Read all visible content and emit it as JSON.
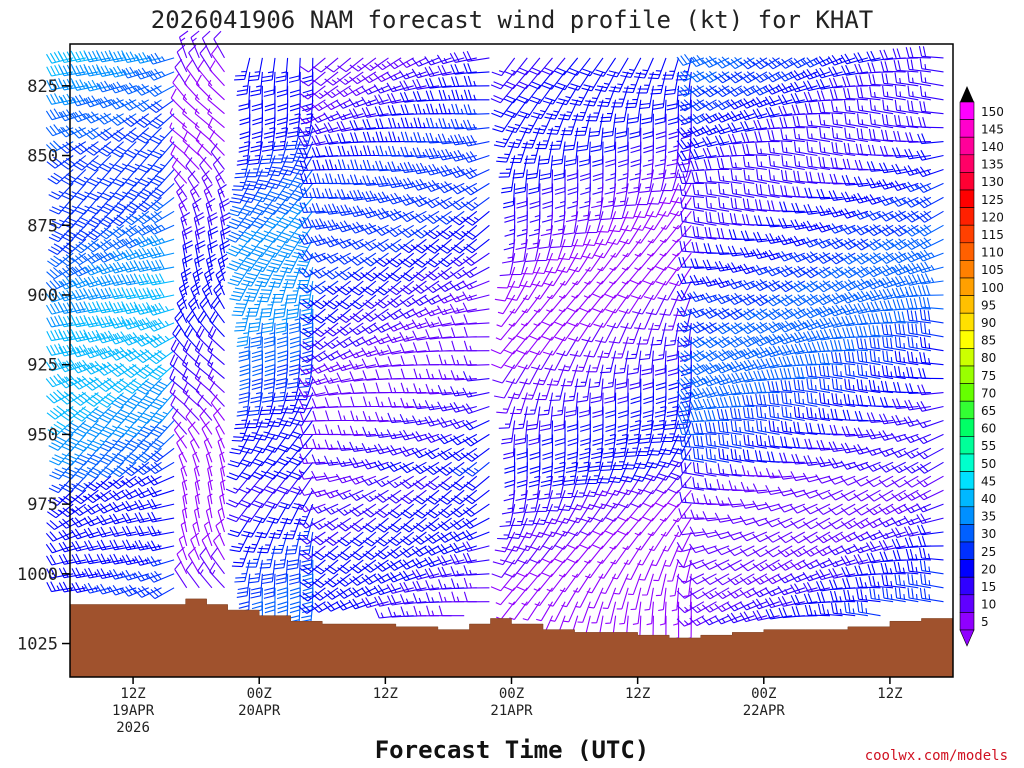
{
  "chart_data": {
    "type": "wind_profile",
    "title": "2026041906 NAM forecast wind profile (kt) for KHAT",
    "xlabel": "Forecast Time (UTC)",
    "credit": "coolwx.com/models",
    "ylim_hpa": [
      1037,
      810
    ],
    "y_ticks": [
      825,
      850,
      875,
      900,
      925,
      950,
      975,
      1000,
      1025
    ],
    "x_range_hours": [
      6,
      90
    ],
    "x_ticks": [
      {
        "hour": 12,
        "lines": [
          "12Z",
          "19APR",
          "2026"
        ]
      },
      {
        "hour": 24,
        "lines": [
          "00Z",
          "20APR"
        ]
      },
      {
        "hour": 36,
        "lines": [
          "12Z"
        ]
      },
      {
        "hour": 48,
        "lines": [
          "00Z",
          "21APR"
        ]
      },
      {
        "hour": 60,
        "lines": [
          "12Z"
        ]
      },
      {
        "hour": 72,
        "lines": [
          "00Z",
          "22APR"
        ]
      },
      {
        "hour": 84,
        "lines": [
          "12Z"
        ]
      }
    ],
    "colorbar": {
      "levels": [
        150,
        145,
        140,
        135,
        130,
        125,
        120,
        115,
        110,
        105,
        100,
        95,
        90,
        85,
        80,
        75,
        70,
        65,
        60,
        55,
        50,
        45,
        40,
        35,
        30,
        25,
        20,
        15,
        10,
        5
      ],
      "colors": [
        "#ff00ff",
        "#ff00cc",
        "#ff0099",
        "#ff0066",
        "#ff0033",
        "#ff0000",
        "#ff2000",
        "#ff4000",
        "#ff6000",
        "#ff8000",
        "#ffa000",
        "#ffc000",
        "#ffe000",
        "#ffff00",
        "#ccff00",
        "#99ff00",
        "#66ff00",
        "#33ff33",
        "#00ff66",
        "#00ff99",
        "#00ffcc",
        "#00e0ff",
        "#00b8ff",
        "#0090ff",
        "#0060ff",
        "#0030ff",
        "#0000ff",
        "#3000ff",
        "#6000ff",
        "#9000ff"
      ]
    },
    "surface_pressure_hpa": [
      {
        "hour": 6,
        "p": 1011
      },
      {
        "hour": 17,
        "p": 1009
      },
      {
        "hour": 19,
        "p": 1011
      },
      {
        "hour": 21,
        "p": 1013
      },
      {
        "hour": 24,
        "p": 1015
      },
      {
        "hour": 27,
        "p": 1017
      },
      {
        "hour": 30,
        "p": 1018
      },
      {
        "hour": 34,
        "p": 1018
      },
      {
        "hour": 37,
        "p": 1019
      },
      {
        "hour": 41,
        "p": 1020
      },
      {
        "hour": 44,
        "p": 1018
      },
      {
        "hour": 46,
        "p": 1016
      },
      {
        "hour": 48,
        "p": 1018
      },
      {
        "hour": 51,
        "p": 1020
      },
      {
        "hour": 54,
        "p": 1021
      },
      {
        "hour": 57,
        "p": 1021
      },
      {
        "hour": 60,
        "p": 1022
      },
      {
        "hour": 63,
        "p": 1023
      },
      {
        "hour": 66,
        "p": 1022
      },
      {
        "hour": 69,
        "p": 1021
      },
      {
        "hour": 72,
        "p": 1020
      },
      {
        "hour": 76,
        "p": 1020
      },
      {
        "hour": 80,
        "p": 1019
      },
      {
        "hour": 84,
        "p": 1017
      },
      {
        "hour": 87,
        "p": 1016
      },
      {
        "hour": 90,
        "p": 1014
      }
    ],
    "barb_grid": {
      "hours_step": 1.2,
      "pressure_levels": [
        815,
        820,
        825,
        830,
        835,
        840,
        845,
        850,
        855,
        860,
        865,
        870,
        875,
        880,
        885,
        890,
        895,
        900,
        905,
        910,
        915,
        920,
        925,
        930,
        935,
        940,
        945,
        950,
        955,
        960,
        965,
        970,
        975,
        980,
        985,
        990,
        995,
        1000,
        1005,
        1010,
        1015,
        1020
      ]
    },
    "wind_regimes": [
      {
        "hours": [
          6,
          16.5
        ],
        "dir_deg": 240,
        "speed_kt": 35
      },
      {
        "hours": [
          17,
          21.5
        ],
        "dir_deg": 330,
        "speed_kt": 15
      },
      {
        "hours": [
          22,
          30
        ],
        "dir_deg": 200,
        "speed_kt": 30
      },
      {
        "hours": [
          30,
          46
        ],
        "dir_deg": 250,
        "speed_kt": 20
      },
      {
        "hours": [
          48,
          66
        ],
        "dir_deg": 200,
        "speed_kt": 15
      },
      {
        "hours": [
          66,
          90
        ],
        "dir_deg": 260,
        "speed_kt": 25
      }
    ]
  }
}
